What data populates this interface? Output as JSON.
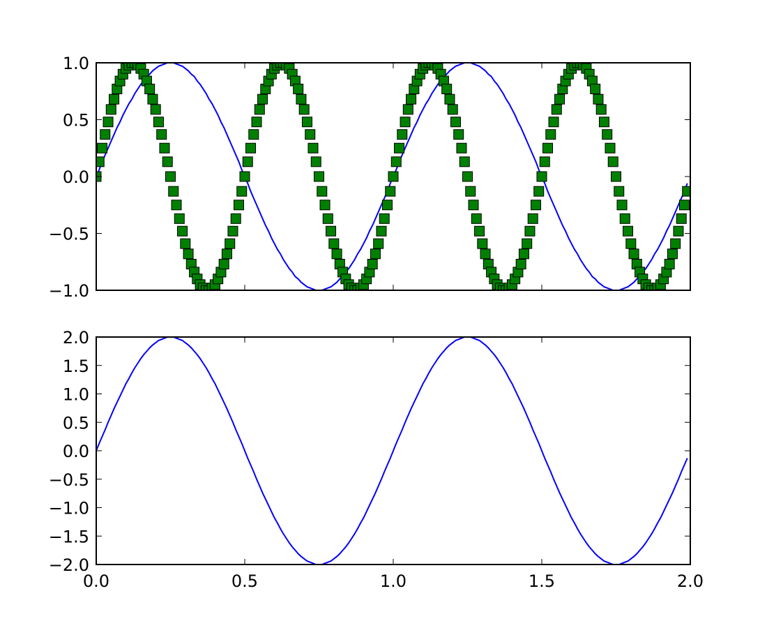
{
  "chart_data": [
    {
      "type": "line",
      "panel": "top",
      "x": {
        "start": 0,
        "stop": 1.99,
        "step": 0.01
      },
      "xlim": [
        0,
        2
      ],
      "ylim": [
        -1,
        1
      ],
      "xticks": [
        0,
        0.5,
        1,
        1.5,
        2
      ],
      "yticks": [
        -1,
        -0.5,
        0,
        0.5,
        1
      ],
      "ytick_labels": [
        "−1.0",
        "−0.5",
        "0.0",
        "0.5",
        "1.0"
      ],
      "grid": false,
      "series": [
        {
          "style": "line",
          "color": "#0000ff",
          "values": [
            0,
            0.06,
            0.13,
            0.19,
            0.25,
            0.31,
            0.37,
            0.43,
            0.48,
            0.54,
            0.59,
            0.64,
            0.68,
            0.73,
            0.77,
            0.81,
            0.84,
            0.88,
            0.9,
            0.93,
            0.95,
            0.97,
            0.98,
            0.99,
            1,
            1,
            1,
            0.99,
            0.98,
            0.97,
            0.95,
            0.93,
            0.9,
            0.88,
            0.84,
            0.81,
            0.77,
            0.73,
            0.68,
            0.64,
            0.59,
            0.54,
            0.48,
            0.43,
            0.37,
            0.31,
            0.25,
            0.19,
            0.13,
            0.06,
            0,
            -0.06,
            -0.13,
            -0.19,
            -0.25,
            -0.31,
            -0.37,
            -0.43,
            -0.48,
            -0.54,
            -0.59,
            -0.64,
            -0.68,
            -0.73,
            -0.77,
            -0.81,
            -0.84,
            -0.88,
            -0.9,
            -0.93,
            -0.95,
            -0.97,
            -0.98,
            -0.99,
            -1,
            -1,
            -1,
            -0.99,
            -0.98,
            -0.97,
            -0.95,
            -0.93,
            -0.9,
            -0.88,
            -0.84,
            -0.81,
            -0.77,
            -0.73,
            -0.68,
            -0.64,
            -0.59,
            -0.54,
            -0.48,
            -0.43,
            -0.37,
            -0.31,
            -0.25,
            -0.19,
            -0.13,
            -0.06,
            0,
            0.06,
            0.13,
            0.19,
            0.25,
            0.31,
            0.37,
            0.43,
            0.48,
            0.54,
            0.59,
            0.64,
            0.68,
            0.73,
            0.77,
            0.81,
            0.84,
            0.88,
            0.9,
            0.93,
            0.95,
            0.97,
            0.98,
            0.99,
            1,
            1,
            1,
            0.99,
            0.98,
            0.97,
            0.95,
            0.93,
            0.9,
            0.88,
            0.84,
            0.81,
            0.77,
            0.73,
            0.68,
            0.64,
            0.59,
            0.54,
            0.48,
            0.43,
            0.37,
            0.31,
            0.25,
            0.19,
            0.13,
            0.06,
            0,
            -0.06,
            -0.13,
            -0.19,
            -0.25,
            -0.31,
            -0.37,
            -0.43,
            -0.48,
            -0.54,
            -0.59,
            -0.64,
            -0.68,
            -0.73,
            -0.77,
            -0.81,
            -0.84,
            -0.88,
            -0.9,
            -0.93,
            -0.95,
            -0.97,
            -0.98,
            -0.99,
            -1,
            -1,
            -1,
            -0.99,
            -0.98,
            -0.97,
            -0.95,
            -0.93,
            -0.9,
            -0.88,
            -0.84,
            -0.81,
            -0.77,
            -0.73,
            -0.68,
            -0.64,
            -0.59,
            -0.54,
            -0.48,
            -0.43,
            -0.37,
            -0.31,
            -0.25,
            -0.19,
            -0.13,
            -0.06
          ]
        },
        {
          "style": "square-markers",
          "color": "#008000",
          "edge_color": "#000000",
          "values": [
            0,
            0.13,
            0.25,
            0.37,
            0.48,
            0.59,
            0.68,
            0.77,
            0.84,
            0.9,
            0.95,
            0.98,
            1,
            1,
            0.98,
            0.95,
            0.9,
            0.84,
            0.77,
            0.68,
            0.59,
            0.48,
            0.37,
            0.25,
            0.13,
            0,
            -0.13,
            -0.25,
            -0.37,
            -0.48,
            -0.59,
            -0.68,
            -0.77,
            -0.84,
            -0.9,
            -0.95,
            -0.98,
            -1,
            -1,
            -0.98,
            -0.95,
            -0.9,
            -0.84,
            -0.77,
            -0.68,
            -0.59,
            -0.48,
            -0.37,
            -0.25,
            -0.13,
            0,
            0.13,
            0.25,
            0.37,
            0.48,
            0.59,
            0.68,
            0.77,
            0.84,
            0.9,
            0.95,
            0.98,
            1,
            1,
            0.98,
            0.95,
            0.9,
            0.84,
            0.77,
            0.68,
            0.59,
            0.48,
            0.37,
            0.25,
            0.13,
            0,
            -0.13,
            -0.25,
            -0.37,
            -0.48,
            -0.59,
            -0.68,
            -0.77,
            -0.84,
            -0.9,
            -0.95,
            -0.98,
            -1,
            -1,
            -0.98,
            -0.95,
            -0.9,
            -0.84,
            -0.77,
            -0.68,
            -0.59,
            -0.48,
            -0.37,
            -0.25,
            -0.13,
            0,
            0.13,
            0.25,
            0.37,
            0.48,
            0.59,
            0.68,
            0.77,
            0.84,
            0.9,
            0.95,
            0.98,
            1,
            1,
            0.98,
            0.95,
            0.9,
            0.84,
            0.77,
            0.68,
            0.59,
            0.48,
            0.37,
            0.25,
            0.13,
            0,
            -0.13,
            -0.25,
            -0.37,
            -0.48,
            -0.59,
            -0.68,
            -0.77,
            -0.84,
            -0.9,
            -0.95,
            -0.98,
            -1,
            -1,
            -0.98,
            -0.95,
            -0.9,
            -0.84,
            -0.77,
            -0.68,
            -0.59,
            -0.48,
            -0.37,
            -0.25,
            -0.13,
            0,
            0.13,
            0.25,
            0.37,
            0.48,
            0.59,
            0.68,
            0.77,
            0.84,
            0.9,
            0.95,
            0.98,
            1,
            1,
            0.98,
            0.95,
            0.9,
            0.84,
            0.77,
            0.68,
            0.59,
            0.48,
            0.37,
            0.25,
            0.13,
            0,
            -0.13,
            -0.25,
            -0.37,
            -0.48,
            -0.59,
            -0.68,
            -0.77,
            -0.84,
            -0.9,
            -0.95,
            -0.98,
            -1,
            -1,
            -0.98,
            -0.95,
            -0.9,
            -0.84,
            -0.77,
            -0.68,
            -0.59,
            -0.48,
            -0.37,
            -0.25,
            -0.13
          ]
        }
      ]
    },
    {
      "type": "line",
      "panel": "bottom",
      "x": {
        "start": 0,
        "stop": 1.99,
        "step": 0.01
      },
      "xlim": [
        0,
        2
      ],
      "ylim": [
        -2,
        2
      ],
      "xticks": [
        0,
        0.5,
        1,
        1.5,
        2
      ],
      "xtick_labels": [
        "0.0",
        "0.5",
        "1.0",
        "1.5",
        "2.0"
      ],
      "yticks": [
        -2,
        -1.5,
        -1,
        -0.5,
        0,
        0.5,
        1,
        1.5,
        2
      ],
      "ytick_labels": [
        "−2.0",
        "−1.5",
        "−1.0",
        "−0.5",
        "0.0",
        "0.5",
        "1.0",
        "1.5",
        "2.0"
      ],
      "grid": false,
      "series": [
        {
          "style": "line",
          "color": "#0000ff",
          "values": [
            0,
            0.13,
            0.25,
            0.37,
            0.5,
            0.62,
            0.74,
            0.85,
            0.96,
            1.07,
            1.18,
            1.27,
            1.37,
            1.46,
            1.54,
            1.62,
            1.69,
            1.75,
            1.81,
            1.86,
            1.9,
            1.94,
            1.96,
            1.98,
            2,
            2,
            2,
            1.98,
            1.96,
            1.94,
            1.9,
            1.86,
            1.81,
            1.75,
            1.69,
            1.62,
            1.54,
            1.46,
            1.37,
            1.27,
            1.18,
            1.07,
            0.96,
            0.85,
            0.74,
            0.62,
            0.5,
            0.37,
            0.25,
            0.13,
            0,
            -0.13,
            -0.25,
            -0.37,
            -0.5,
            -0.62,
            -0.74,
            -0.85,
            -0.96,
            -1.07,
            -1.18,
            -1.27,
            -1.37,
            -1.46,
            -1.54,
            -1.62,
            -1.69,
            -1.75,
            -1.81,
            -1.86,
            -1.9,
            -1.94,
            -1.96,
            -1.98,
            -2,
            -2,
            -2,
            -1.98,
            -1.96,
            -1.94,
            -1.9,
            -1.86,
            -1.81,
            -1.75,
            -1.69,
            -1.62,
            -1.54,
            -1.46,
            -1.37,
            -1.27,
            -1.18,
            -1.07,
            -0.96,
            -0.85,
            -0.74,
            -0.62,
            -0.5,
            -0.37,
            -0.25,
            -0.13,
            0,
            0.13,
            0.25,
            0.37,
            0.5,
            0.62,
            0.74,
            0.85,
            0.96,
            1.07,
            1.18,
            1.27,
            1.37,
            1.46,
            1.54,
            1.62,
            1.69,
            1.75,
            1.81,
            1.86,
            1.9,
            1.94,
            1.96,
            1.98,
            2,
            2,
            2,
            1.98,
            1.96,
            1.94,
            1.9,
            1.86,
            1.81,
            1.75,
            1.69,
            1.62,
            1.54,
            1.46,
            1.37,
            1.27,
            1.18,
            1.07,
            0.96,
            0.85,
            0.74,
            0.62,
            0.5,
            0.37,
            0.25,
            0.13,
            0,
            -0.13,
            -0.25,
            -0.37,
            -0.5,
            -0.62,
            -0.74,
            -0.85,
            -0.96,
            -1.07,
            -1.18,
            -1.27,
            -1.37,
            -1.46,
            -1.54,
            -1.62,
            -1.69,
            -1.75,
            -1.81,
            -1.86,
            -1.9,
            -1.94,
            -1.96,
            -1.98,
            -2,
            -2,
            -2,
            -1.98,
            -1.96,
            -1.94,
            -1.9,
            -1.86,
            -1.81,
            -1.75,
            -1.69,
            -1.62,
            -1.54,
            -1.46,
            -1.37,
            -1.27,
            -1.18,
            -1.07,
            -0.96,
            -0.85,
            -0.74,
            -0.62,
            -0.5,
            -0.37,
            -0.25,
            -0.13
          ]
        }
      ]
    }
  ]
}
